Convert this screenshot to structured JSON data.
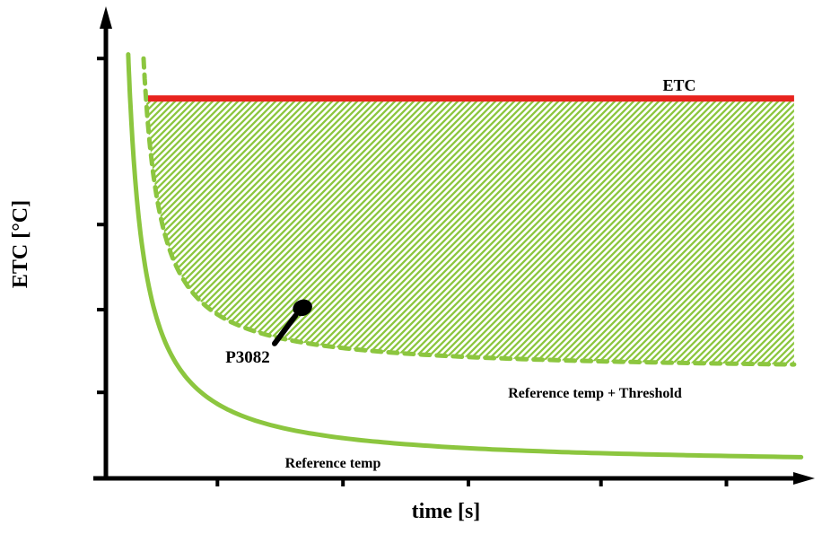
{
  "colors": {
    "green": "#8CC63F",
    "red": "#E8231E",
    "black": "#000000",
    "background": "#FFFFFF"
  },
  "chart_data": {
    "type": "line",
    "title": "",
    "xlabel": "time [s]",
    "ylabel": "ETC [°C]",
    "x_range": [
      0,
      10
    ],
    "y_range": [
      0,
      10
    ],
    "grid": false,
    "legend": "none",
    "x_ticks": [
      1.6,
      3.4,
      5.2,
      7.1,
      8.9
    ],
    "y_ticks": [
      1.85,
      3.63,
      5.46,
      9.03
    ],
    "series": [
      {
        "name": "ETC",
        "shape": "hline",
        "y": 8.17,
        "x_start": 0.605,
        "x_end": 9.87,
        "color": "#E8231E",
        "width": 7,
        "dash": "none"
      },
      {
        "name": "Reference temp + Threshold",
        "shape": "hyperbola",
        "formula": "y = y_asym + A / (x - x0)",
        "x0": 0.3,
        "y_asym": 2.28,
        "A": 1.62,
        "x_start": 0.54,
        "x_end": 9.87,
        "color": "#8CC63F",
        "width": 5,
        "dash": "10 8"
      },
      {
        "name": "Reference temp",
        "shape": "hyperbola",
        "formula": "y = y_asym + A / (x - x0)",
        "x0": 0.09,
        "y_asym": 0.25,
        "A": 2.04,
        "x_start": 0.32,
        "x_end": 9.97,
        "color": "#8CC63F",
        "width": 5,
        "dash": "none"
      }
    ],
    "shaded_region": {
      "description": "hatched area between Reference temp + Threshold curve and ETC line",
      "fill": "diagonal-hatch",
      "hatch_color": "#8CC63F",
      "x_start": 0.575,
      "x_end": 9.87,
      "top_y": 8.17
    },
    "annotation": {
      "label": "P3082",
      "point": [
        2.82,
        3.67
      ],
      "leader_from": [
        2.72,
        3.5
      ],
      "leader_to": [
        2.42,
        2.9
      ]
    }
  }
}
